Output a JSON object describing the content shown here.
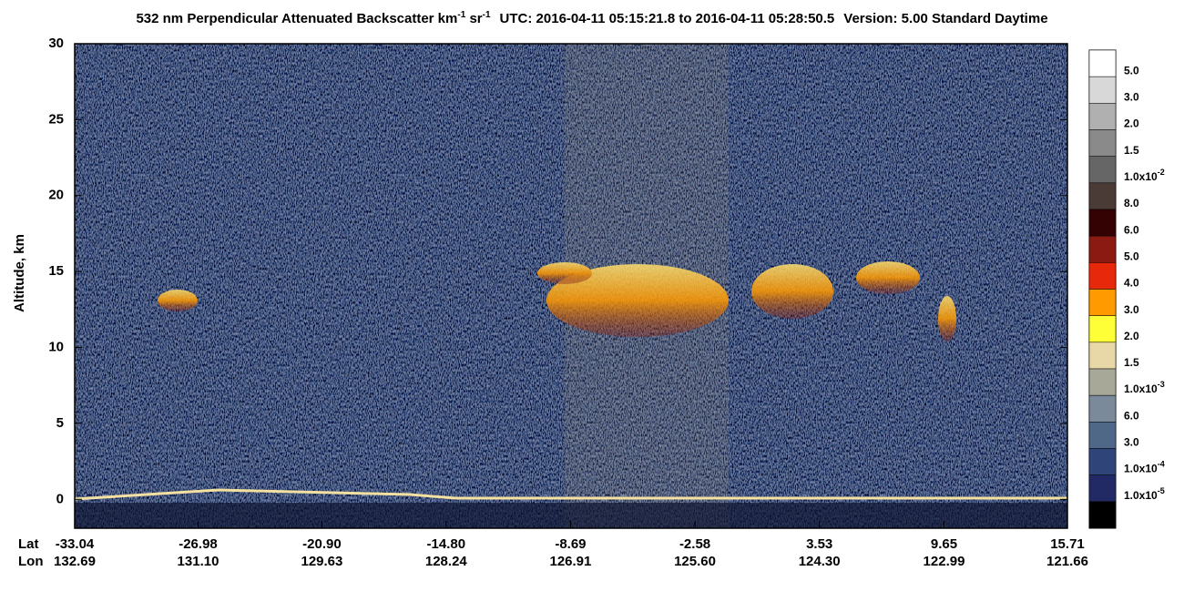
{
  "chart_data": {
    "type": "heatmap",
    "title": [
      "532 nm Perpendicular Attenuated Backscatter km",
      "-1",
      " sr",
      "-1",
      "UTC: 2016-04-11 05:15:21.8 to 2016-04-11 05:28:50.5",
      "Version: 5.00 Standard Daytime"
    ],
    "y_label": "Altitude, km",
    "ylim": [
      -1.9,
      30
    ],
    "yticks": [
      0,
      5,
      10,
      15,
      20,
      25,
      30
    ],
    "x_label": "Lat",
    "xlim": [
      -33.04,
      15.71
    ],
    "xticks": [
      -33.04,
      -26.98,
      {
        "value": -20.9,
        "label": "-20.90"
      },
      {
        "value": -14.8,
        "label": "-14.80"
      },
      -8.69,
      -2.58,
      3.53,
      9.65,
      15.71
    ],
    "x2_label": "Lon",
    "x2_tick_labels": [
      "132.69",
      "131.10",
      "129.63",
      "128.24",
      "126.91",
      "125.60",
      "124.30",
      "122.99",
      "121.66"
    ],
    "colorbar": {
      "colors": [
        "#ffffff",
        "#d8d8d8",
        "#b0b0b0",
        "#8a8a8a",
        "#666666",
        "#4a3b37",
        "#340202",
        "#8a1a12",
        "#e8280a",
        "#ff9a00",
        "#ffff38",
        "#e8d8a8",
        "#a8a898",
        "#7a8a9a",
        "#506888",
        "#2f4478",
        "#222a66",
        "#000000"
      ],
      "labels": [
        "5.0",
        "3.0",
        "2.0",
        "1.5",
        {
          "text": "1.0x10",
          "sup": "-2"
        },
        "8.0",
        "6.0",
        "5.0",
        "4.0",
        "3.0",
        "2.0",
        "1.5",
        {
          "text": "1.0x10",
          "sup": "-3"
        },
        "6.0",
        "3.0",
        {
          "text": "1.0x10",
          "sup": "-4"
        },
        {
          "text": "1.0x10",
          "sup": "-5"
        }
      ]
    }
  }
}
